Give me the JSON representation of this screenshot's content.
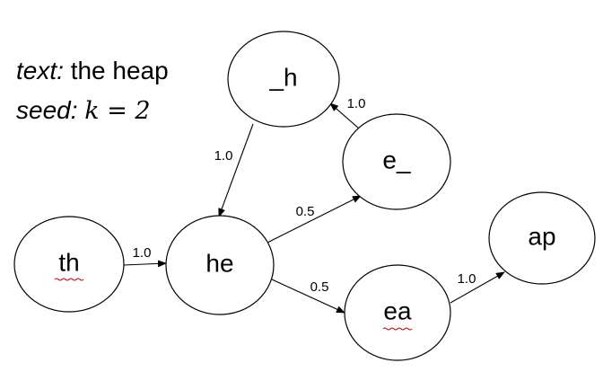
{
  "caption": {
    "text_label": "text:",
    "text_value": "the heap",
    "seed_label": "seed:",
    "seed_value": "k = 2"
  },
  "nodes": [
    {
      "id": "h_",
      "label": "_h"
    },
    {
      "id": "e_",
      "label": "e_"
    },
    {
      "id": "th",
      "label": "th"
    },
    {
      "id": "he",
      "label": "he"
    },
    {
      "id": "ea",
      "label": "ea"
    },
    {
      "id": "ap",
      "label": "ap"
    }
  ],
  "edges": [
    {
      "from": "th",
      "to": "he",
      "weight": "1.0"
    },
    {
      "from": "h_",
      "to": "he",
      "weight": "1.0"
    },
    {
      "from": "he",
      "to": "e_",
      "weight": "0.5"
    },
    {
      "from": "e_",
      "to": "h_",
      "weight": "1.0"
    },
    {
      "from": "he",
      "to": "ea",
      "weight": "0.5"
    },
    {
      "from": "ea",
      "to": "ap",
      "weight": "1.0"
    }
  ]
}
